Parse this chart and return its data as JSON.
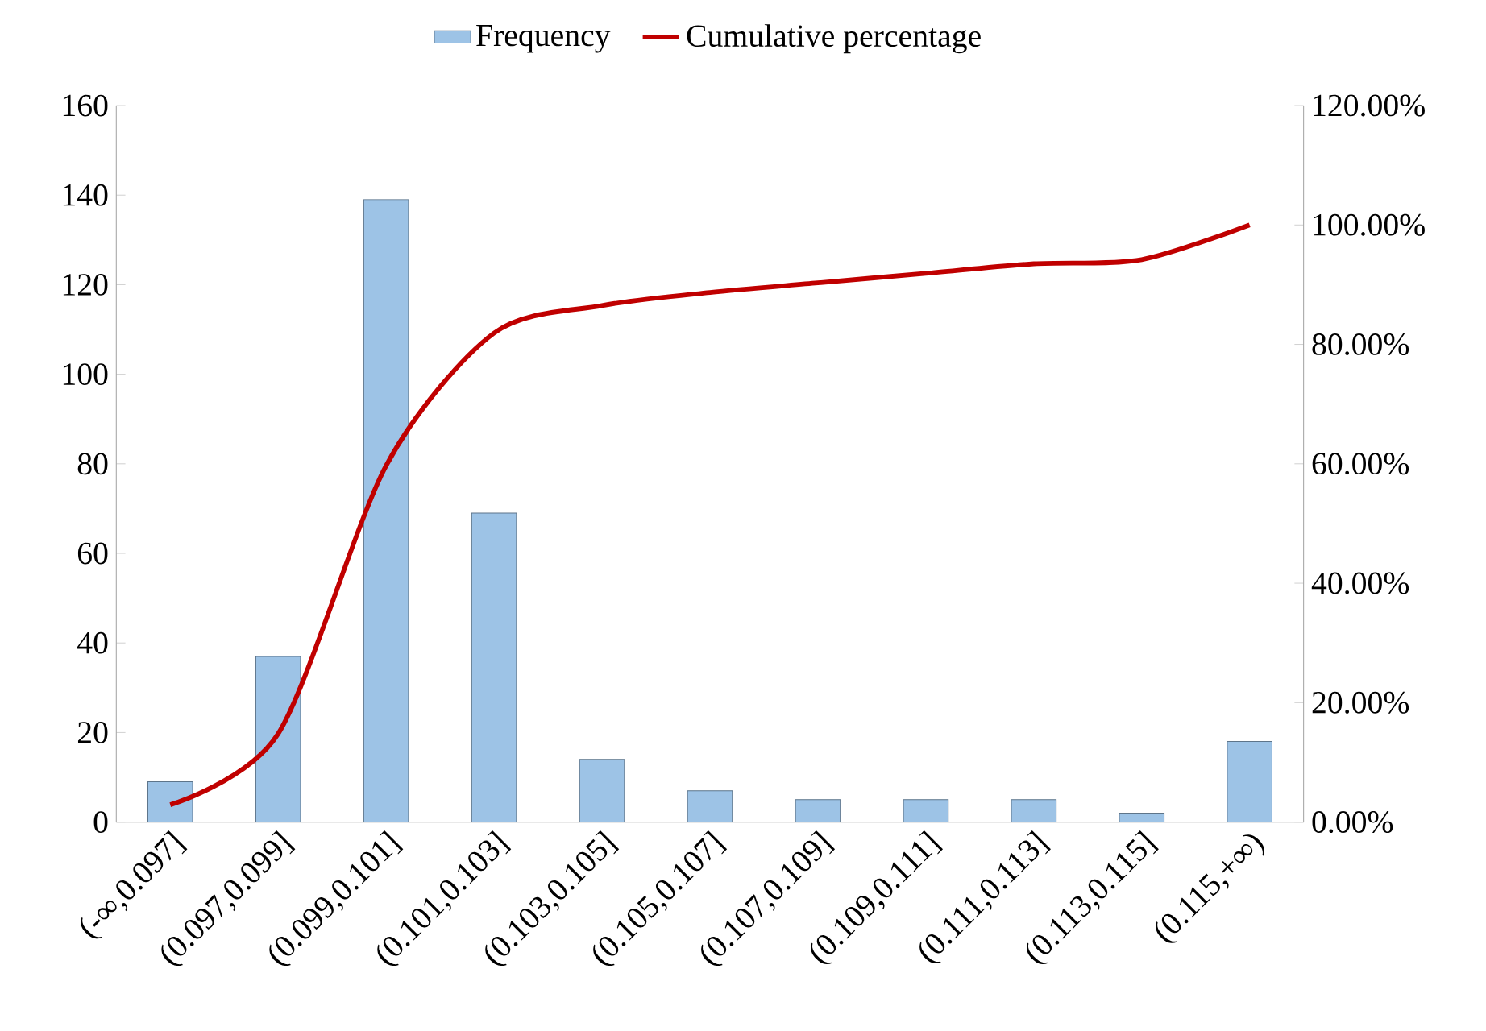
{
  "chart_data": {
    "type": "bar",
    "categories": [
      "(-∞,0.097]",
      "(0.097,0.099]",
      "(0.099,0.101]",
      "(0.101,0.103]",
      "(0.103,0.105]",
      "(0.105,0.107]",
      "(0.107,0.109]",
      "(0.109,0.111]",
      "(0.111,0.113]",
      "(0.113,0.115]",
      "(0.115,+∞)"
    ],
    "series": [
      {
        "name": "Frequency",
        "color": "#9dc3e6",
        "values": [
          9,
          37,
          139,
          69,
          14,
          7,
          5,
          5,
          5,
          2,
          18
        ]
      },
      {
        "name": "Cumulative percentage",
        "type": "line",
        "axis": "y2",
        "color": "#c00000",
        "values": [
          2.9,
          14.8,
          59.7,
          81.9,
          86.5,
          88.7,
          90.3,
          91.9,
          93.5,
          94.2,
          100
        ]
      }
    ],
    "ylim": [
      0,
      160
    ],
    "yticks": [
      0,
      20,
      40,
      60,
      80,
      100,
      120,
      140,
      160
    ],
    "y2lim": [
      0,
      120
    ],
    "y2ticks": [
      {
        "value": 0,
        "label": "0.00%"
      },
      {
        "value": 20,
        "label": "20.00%"
      },
      {
        "value": 40,
        "label": "40.00%"
      },
      {
        "value": 60,
        "label": "60.00%"
      },
      {
        "value": 80,
        "label": "80.00%"
      },
      {
        "value": 100,
        "label": "100.00%"
      },
      {
        "value": 120,
        "label": "120.00%"
      }
    ],
    "legend": "top",
    "grid": false,
    "marker": "none",
    "line_style": "solid"
  }
}
